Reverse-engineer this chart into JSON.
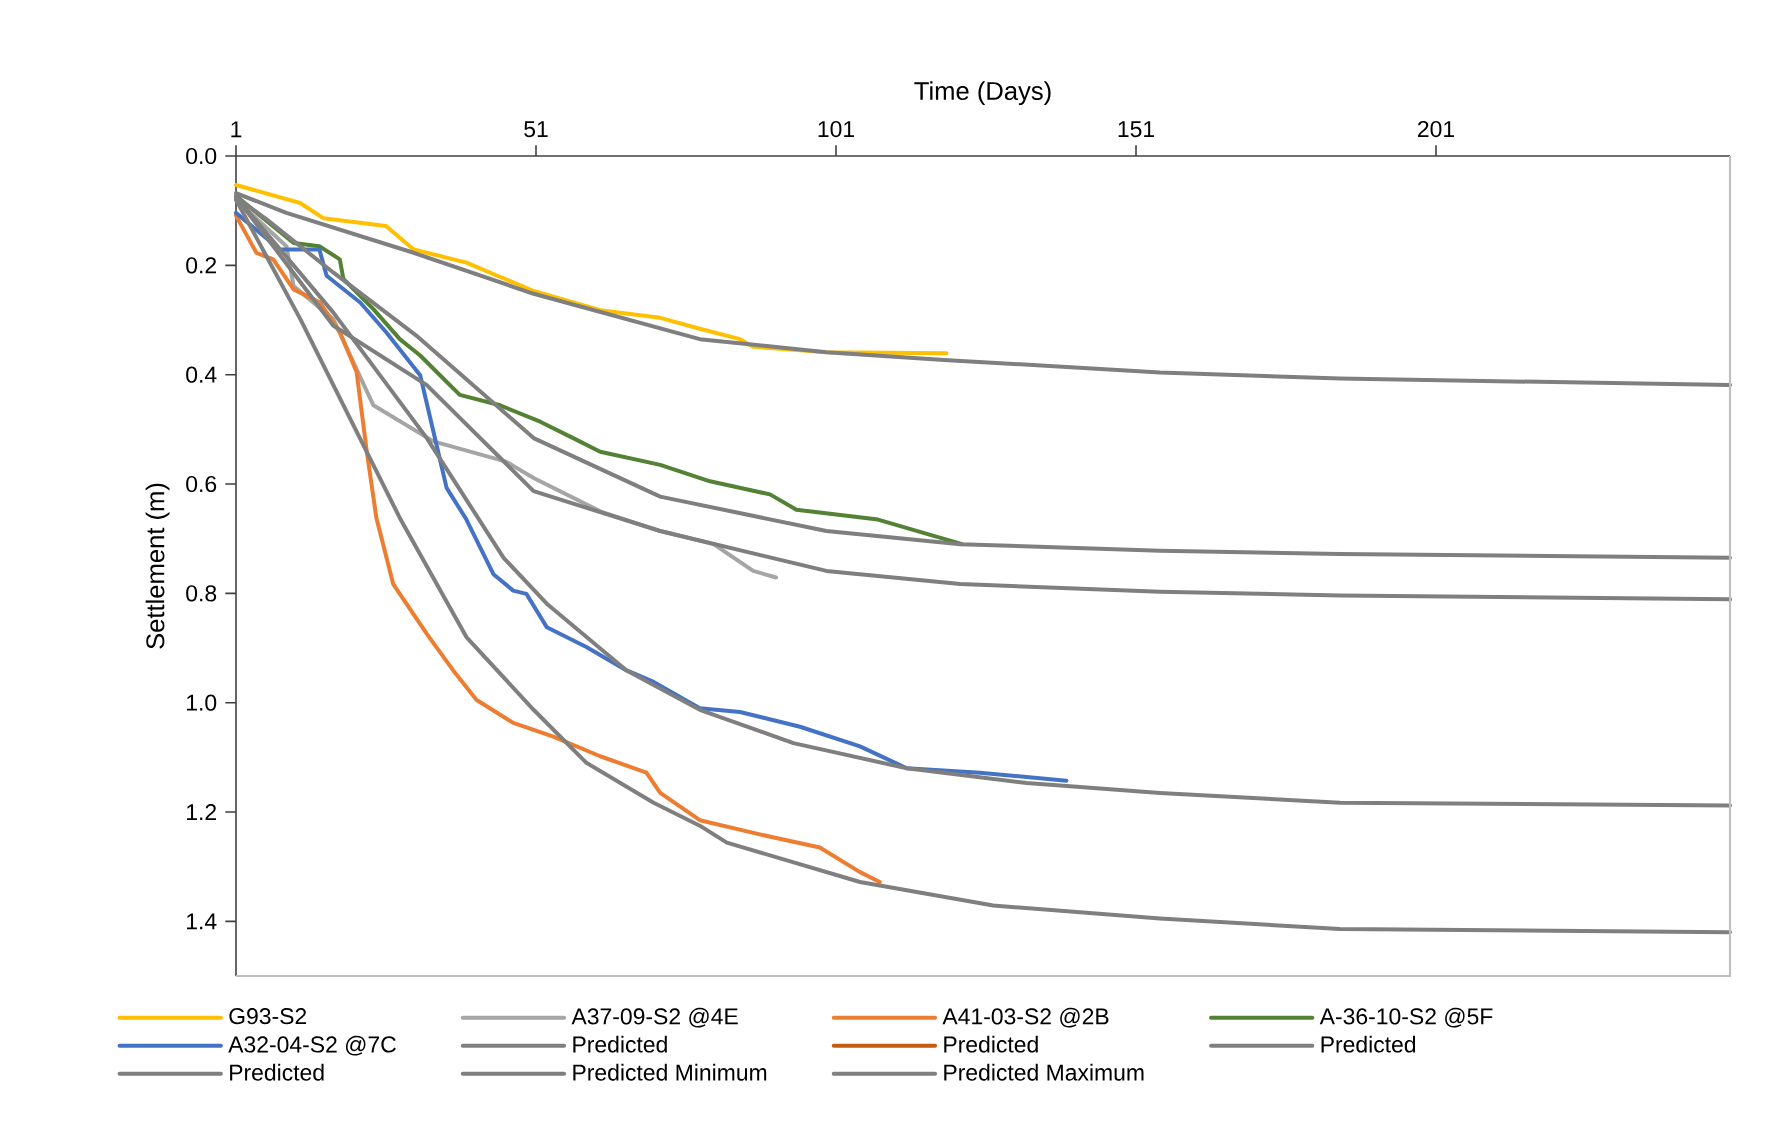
{
  "chart_data": {
    "type": "line",
    "xlabel": "Time (Days)",
    "ylabel": "Settlement (m)",
    "xlim": [
      1,
      250
    ],
    "xticks": [
      1,
      51,
      101,
      151,
      201
    ],
    "ylim": [
      1.5,
      0
    ],
    "yticks": [
      {
        "value": 0,
        "label": "0.0"
      },
      0.2,
      0.4,
      0.6,
      0.8,
      {
        "value": 1,
        "label": "1.0"
      },
      1.2,
      1.4
    ],
    "grid": false,
    "legend": "bottom",
    "marker": "none",
    "line_style": "solid",
    "series": [
      {
        "name": "G93-S2",
        "color": "#ffc000",
        "x": [
          1,
          11.7,
          15.6,
          26,
          30.6,
          39.4,
          50.6,
          61.7,
          71.7,
          78.3,
          85,
          87.2,
          99.4,
          119.4
        ],
        "values": [
          0.053,
          0.086,
          0.114,
          0.128,
          0.171,
          0.195,
          0.247,
          0.282,
          0.296,
          0.316,
          0.335,
          0.349,
          0.359,
          0.361
        ]
      },
      {
        "name": "A37-09-S2 @4E",
        "color": "#a5a5a5",
        "x": [
          1,
          9.4,
          10.6,
          17.2,
          23.9,
          33.9,
          46,
          50.6,
          61.7,
          71.7,
          80.6,
          87.2,
          91
        ],
        "values": [
          0.08,
          0.165,
          0.238,
          0.298,
          0.456,
          0.522,
          0.559,
          0.589,
          0.65,
          0.686,
          0.71,
          0.759,
          0.771
        ]
      },
      {
        "name": "A41-03-S2 @2B",
        "color": "#ed7d31",
        "x": [
          1,
          4.4,
          7.2,
          10.6,
          15,
          18.3,
          21.1,
          22.8,
          24.4,
          27.2,
          32.8,
          37.2,
          41.1,
          47.2,
          53.9,
          61.7,
          69.4,
          71.7,
          78.3,
          88.3,
          98.3,
          105,
          108.3
        ],
        "values": [
          0.109,
          0.177,
          0.189,
          0.244,
          0.268,
          0.322,
          0.395,
          0.541,
          0.662,
          0.783,
          0.874,
          0.941,
          0.995,
          1.037,
          1.062,
          1.098,
          1.128,
          1.165,
          1.215,
          1.241,
          1.265,
          1.31,
          1.328
        ]
      },
      {
        "name": "A-36-10-S2 @5F",
        "color": "#548235",
        "x": [
          1,
          10.6,
          14.9,
          18.3,
          18.9,
          23.9,
          28.3,
          31.7,
          35,
          38.3,
          45,
          51.7,
          57.2,
          61.7,
          71.7,
          80,
          90,
          94.4,
          108,
          122
        ],
        "values": [
          0.073,
          0.159,
          0.165,
          0.189,
          0.225,
          0.28,
          0.335,
          0.365,
          0.401,
          0.437,
          0.456,
          0.486,
          0.516,
          0.541,
          0.565,
          0.595,
          0.619,
          0.647,
          0.665,
          0.71
        ]
      },
      {
        "name": "A32-04-S2 @7C",
        "color": "#4472c4",
        "x": [
          1,
          8.3,
          14.9,
          16.1,
          21.7,
          26,
          31.7,
          33.9,
          36.1,
          39.4,
          43.9,
          47.2,
          49.4,
          52.8,
          59.4,
          66.1,
          70.6,
          78.3,
          85,
          95,
          105,
          112.8,
          125,
          139.4
        ],
        "values": [
          0.104,
          0.171,
          0.171,
          0.219,
          0.268,
          0.322,
          0.401,
          0.504,
          0.607,
          0.665,
          0.765,
          0.795,
          0.801,
          0.862,
          0.898,
          0.941,
          0.962,
          1.01,
          1.017,
          1.044,
          1.08,
          1.12,
          1.128,
          1.143
        ]
      },
      {
        "name": "Predicted",
        "color": "#7f7f7f",
        "x": [
          1,
          9.4,
          30.6,
          50.6,
          78.3,
          99.4,
          119,
          155,
          185,
          250
        ],
        "values": [
          0.068,
          0.104,
          0.177,
          0.252,
          0.335,
          0.359,
          0.373,
          0.396,
          0.407,
          0.419
        ]
      },
      {
        "name": "Predicted",
        "color": "#c55a11"
      },
      {
        "name": "Predicted",
        "color": "#7f7f7f",
        "x": [
          1,
          6.1,
          17.2,
          31,
          50.6,
          71.7,
          99.4,
          121.7,
          155,
          185,
          250
        ],
        "values": [
          0.075,
          0.116,
          0.213,
          0.328,
          0.516,
          0.623,
          0.686,
          0.71,
          0.722,
          0.728,
          0.735
        ]
      },
      {
        "name": "Predicted",
        "color": "#7f7f7f",
        "x": [
          1,
          17.2,
          32.8,
          50.6,
          71.7,
          99.4,
          121.7,
          155,
          185,
          250
        ],
        "values": [
          0.075,
          0.31,
          0.419,
          0.613,
          0.686,
          0.759,
          0.783,
          0.797,
          0.804,
          0.811
        ]
      },
      {
        "name": "Predicted Minimum",
        "color": "#7f7f7f",
        "x": [
          1,
          17.2,
          32.8,
          45.6,
          52.8,
          66.1,
          78.3,
          93.9,
          112.8,
          132.8,
          155,
          185,
          250
        ],
        "values": [
          0.075,
          0.286,
          0.516,
          0.735,
          0.819,
          0.941,
          1.013,
          1.074,
          1.12,
          1.147,
          1.165,
          1.183,
          1.188
        ]
      },
      {
        "name": "Predicted Maximum",
        "color": "#7f7f7f",
        "x": [
          1,
          11.7,
          28.3,
          39.4,
          50.6,
          59.4,
          70.6,
          78.3,
          82.8,
          105,
          127.2,
          155,
          185,
          250
        ],
        "values": [
          0.08,
          0.298,
          0.662,
          0.88,
          1.013,
          1.11,
          1.183,
          1.225,
          1.256,
          1.328,
          1.371,
          1.395,
          1.414,
          1.42
        ]
      }
    ]
  }
}
